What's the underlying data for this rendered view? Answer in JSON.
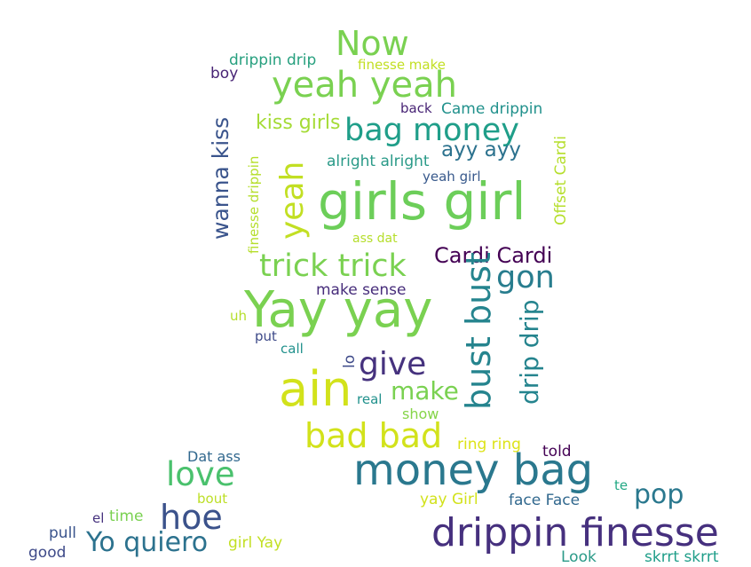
{
  "palette": {
    "dark_purple": "#440154",
    "indigo": "#3b528b",
    "teal": "#21908d",
    "green": "#5dc963",
    "lime": "#bddf26",
    "yellow": "#dde318"
  },
  "words": [
    {
      "id": "w01",
      "text": "Now",
      "color": "#7ad151",
      "vertical": false
    },
    {
      "id": "w02",
      "text": "drippin drip",
      "color": "#27a07f",
      "vertical": false
    },
    {
      "id": "w03",
      "text": "finesse make",
      "color": "#c2df23",
      "vertical": false
    },
    {
      "id": "w04",
      "text": "boy",
      "color": "#482475",
      "vertical": false
    },
    {
      "id": "w05",
      "text": "yeah yeah",
      "color": "#7ad151",
      "vertical": false
    },
    {
      "id": "w06",
      "text": "wanna kiss",
      "color": "#3a548c",
      "vertical": true
    },
    {
      "id": "w07",
      "text": "back",
      "color": "#482475",
      "vertical": false
    },
    {
      "id": "w08",
      "text": "Came drippin",
      "color": "#21918c",
      "vertical": false
    },
    {
      "id": "w09",
      "text": "kiss girls",
      "color": "#a5db36",
      "vertical": false
    },
    {
      "id": "w10",
      "text": "bag money",
      "color": "#1f9e89",
      "vertical": false
    },
    {
      "id": "w11",
      "text": "yeah",
      "color": "#c2df23",
      "vertical": true
    },
    {
      "id": "w12",
      "text": "finesse drippin",
      "color": "#b5de2b",
      "vertical": true
    },
    {
      "id": "w13",
      "text": "ayy ayy",
      "color": "#2c728e",
      "vertical": false
    },
    {
      "id": "w14",
      "text": "alright alright",
      "color": "#2a9a88",
      "vertical": false
    },
    {
      "id": "w15",
      "text": "Offset Cardi",
      "color": "#b5de2b",
      "vertical": true
    },
    {
      "id": "w16",
      "text": "yeah girl",
      "color": "#38598c",
      "vertical": false
    },
    {
      "id": "w17",
      "text": "girls girl",
      "color": "#6cce59",
      "vertical": false
    },
    {
      "id": "w18",
      "text": "ass dat",
      "color": "#b5de2b",
      "vertical": false
    },
    {
      "id": "w19",
      "text": "Cardi Cardi",
      "color": "#440154",
      "vertical": false
    },
    {
      "id": "w20",
      "text": "trick trick",
      "color": "#7ad151",
      "vertical": false
    },
    {
      "id": "w21",
      "text": "gon",
      "color": "#287d8e",
      "vertical": false
    },
    {
      "id": "w22",
      "text": "make sense",
      "color": "#472d7b",
      "vertical": false
    },
    {
      "id": "w23",
      "text": "Yay yay",
      "color": "#7ad151",
      "vertical": false
    },
    {
      "id": "w24",
      "text": "bust bust",
      "color": "#25848e",
      "vertical": true
    },
    {
      "id": "w25",
      "text": "uh",
      "color": "#b5de2b",
      "vertical": false
    },
    {
      "id": "w26",
      "text": "drip drip",
      "color": "#25848e",
      "vertical": true
    },
    {
      "id": "w27",
      "text": "put",
      "color": "#3e4a89",
      "vertical": false
    },
    {
      "id": "w28",
      "text": "call",
      "color": "#21918c",
      "vertical": false
    },
    {
      "id": "w29",
      "text": "lo",
      "color": "#3e4a89",
      "vertical": true
    },
    {
      "id": "w30",
      "text": "give",
      "color": "#46327e",
      "vertical": false
    },
    {
      "id": "w31",
      "text": "ain",
      "color": "#d2e21b",
      "vertical": false
    },
    {
      "id": "w32",
      "text": "make",
      "color": "#7ad151",
      "vertical": false
    },
    {
      "id": "w33",
      "text": "real",
      "color": "#21918c",
      "vertical": false
    },
    {
      "id": "w34",
      "text": "show",
      "color": "#86d549",
      "vertical": false
    },
    {
      "id": "w35",
      "text": "bad bad",
      "color": "#d2e21b",
      "vertical": false
    },
    {
      "id": "w36",
      "text": "ring ring",
      "color": "#dde318",
      "vertical": false
    },
    {
      "id": "w37",
      "text": "told",
      "color": "#440154",
      "vertical": false
    },
    {
      "id": "w38",
      "text": "Dat ass",
      "color": "#31688e",
      "vertical": false
    },
    {
      "id": "w39",
      "text": "love",
      "color": "#4ac16d",
      "vertical": false
    },
    {
      "id": "w40",
      "text": "money bag",
      "color": "#2a788e",
      "vertical": false
    },
    {
      "id": "w41",
      "text": "te",
      "color": "#22a884",
      "vertical": false
    },
    {
      "id": "w42",
      "text": "bout",
      "color": "#bddf26",
      "vertical": false
    },
    {
      "id": "w43",
      "text": "pop",
      "color": "#2a788e",
      "vertical": false
    },
    {
      "id": "w44",
      "text": "hoe",
      "color": "#3b528b",
      "vertical": false
    },
    {
      "id": "w45",
      "text": "yay Girl",
      "color": "#d2e21b",
      "vertical": false
    },
    {
      "id": "w46",
      "text": "face Face",
      "color": "#31688e",
      "vertical": false
    },
    {
      "id": "w47",
      "text": "el",
      "color": "#46327e",
      "vertical": false
    },
    {
      "id": "w48",
      "text": "time",
      "color": "#7ad151",
      "vertical": false
    },
    {
      "id": "w49",
      "text": "drippin finesse",
      "color": "#46307e",
      "vertical": false
    },
    {
      "id": "w50",
      "text": "pull",
      "color": "#3a548c",
      "vertical": false
    },
    {
      "id": "w51",
      "text": "Yo quiero",
      "color": "#2c728e",
      "vertical": false
    },
    {
      "id": "w52",
      "text": "girl Yay",
      "color": "#c2df23",
      "vertical": false
    },
    {
      "id": "w53",
      "text": "good",
      "color": "#3e4a89",
      "vertical": false
    },
    {
      "id": "w54",
      "text": "Look",
      "color": "#2a9a88",
      "vertical": false
    },
    {
      "id": "w55",
      "text": "skrrt skrrt",
      "color": "#1f9e89",
      "vertical": false
    }
  ]
}
